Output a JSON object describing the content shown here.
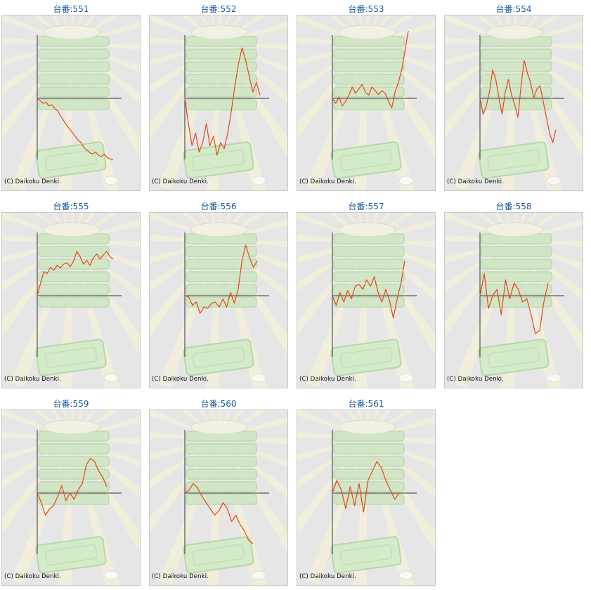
{
  "copyright": "(C) Daikoku Denki.",
  "colors": {
    "title": "#1a5a9a",
    "line": "#e8461a",
    "axis": "#333333",
    "panel_bg": "#e6e6e6"
  },
  "chart_data": [
    {
      "type": "line",
      "title": "台番:551",
      "ylim": [
        -100,
        100
      ],
      "y": [
        0,
        -4,
        -8,
        -6,
        -12,
        -10,
        -16,
        -20,
        -28,
        -35,
        -42,
        -48,
        -54,
        -60,
        -66,
        -70,
        -78,
        -82,
        -86,
        -88,
        -85,
        -90,
        -92,
        -88,
        -94,
        -96,
        -100
      ]
    },
    {
      "type": "line",
      "title": "台番:552",
      "ylim": [
        -100,
        100
      ],
      "y": [
        0,
        -40,
        -75,
        -55,
        -85,
        -70,
        -40,
        -75,
        -60,
        -90,
        -70,
        -80,
        -55,
        -20,
        20,
        55,
        80,
        60,
        35,
        10,
        25,
        5
      ]
    },
    {
      "type": "line",
      "title": "台番:553",
      "ylim": [
        -100,
        100
      ],
      "y": [
        0,
        -8,
        2,
        -12,
        -5,
        5,
        18,
        8,
        15,
        22,
        10,
        5,
        18,
        12,
        6,
        12,
        8,
        -5,
        -15,
        10,
        25,
        45,
        75,
        120
      ]
    },
    {
      "type": "line",
      "title": "台番:554",
      "ylim": [
        -100,
        100
      ],
      "y": [
        0,
        -25,
        -12,
        10,
        45,
        30,
        0,
        -25,
        10,
        30,
        5,
        -10,
        -30,
        20,
        60,
        40,
        25,
        0,
        15,
        20,
        -5,
        -30,
        -55,
        -70,
        -50
      ]
    },
    {
      "type": "line",
      "title": "台番:555",
      "ylim": [
        -100,
        100
      ],
      "y": [
        0,
        20,
        38,
        35,
        45,
        40,
        48,
        44,
        50,
        52,
        46,
        55,
        70,
        62,
        50,
        56,
        48,
        60,
        66,
        58,
        64,
        70,
        62,
        58
      ]
    },
    {
      "type": "line",
      "title": "台番:556",
      "ylim": [
        -100,
        100
      ],
      "y": [
        0,
        -2,
        -15,
        -10,
        -28,
        -18,
        -20,
        -12,
        -10,
        -18,
        -5,
        -18,
        5,
        -12,
        10,
        55,
        80,
        60,
        45,
        55
      ]
    },
    {
      "type": "line",
      "title": "台番:557",
      "ylim": [
        -100,
        100
      ],
      "y": [
        0,
        -15,
        5,
        -10,
        8,
        -5,
        15,
        18,
        10,
        25,
        15,
        30,
        5,
        -10,
        10,
        -8,
        -35,
        -5,
        20,
        55
      ]
    },
    {
      "type": "line",
      "title": "台番:558",
      "ylim": [
        -100,
        100
      ],
      "y": [
        0,
        35,
        -20,
        0,
        10,
        -30,
        25,
        -5,
        20,
        10,
        -10,
        -5,
        -30,
        -60,
        -55,
        -10,
        20
      ]
    },
    {
      "type": "line",
      "title": "台番:559",
      "ylim": [
        -100,
        100
      ],
      "y": [
        0,
        -15,
        -35,
        -25,
        -20,
        -5,
        12,
        -12,
        0,
        -10,
        5,
        15,
        45,
        55,
        50,
        35,
        25,
        10
      ]
    },
    {
      "type": "line",
      "title": "台番:560",
      "ylim": [
        -100,
        100
      ],
      "y": [
        0,
        5,
        15,
        8,
        -5,
        -15,
        -25,
        -35,
        -28,
        -15,
        -25,
        -45,
        -35,
        -50,
        -60,
        -75,
        -80
      ]
    },
    {
      "type": "line",
      "title": "台番:561",
      "ylim": [
        -100,
        100
      ],
      "y": [
        0,
        20,
        5,
        -25,
        10,
        -20,
        15,
        -30,
        20,
        35,
        50,
        40,
        20,
        5,
        -10,
        0
      ]
    }
  ]
}
